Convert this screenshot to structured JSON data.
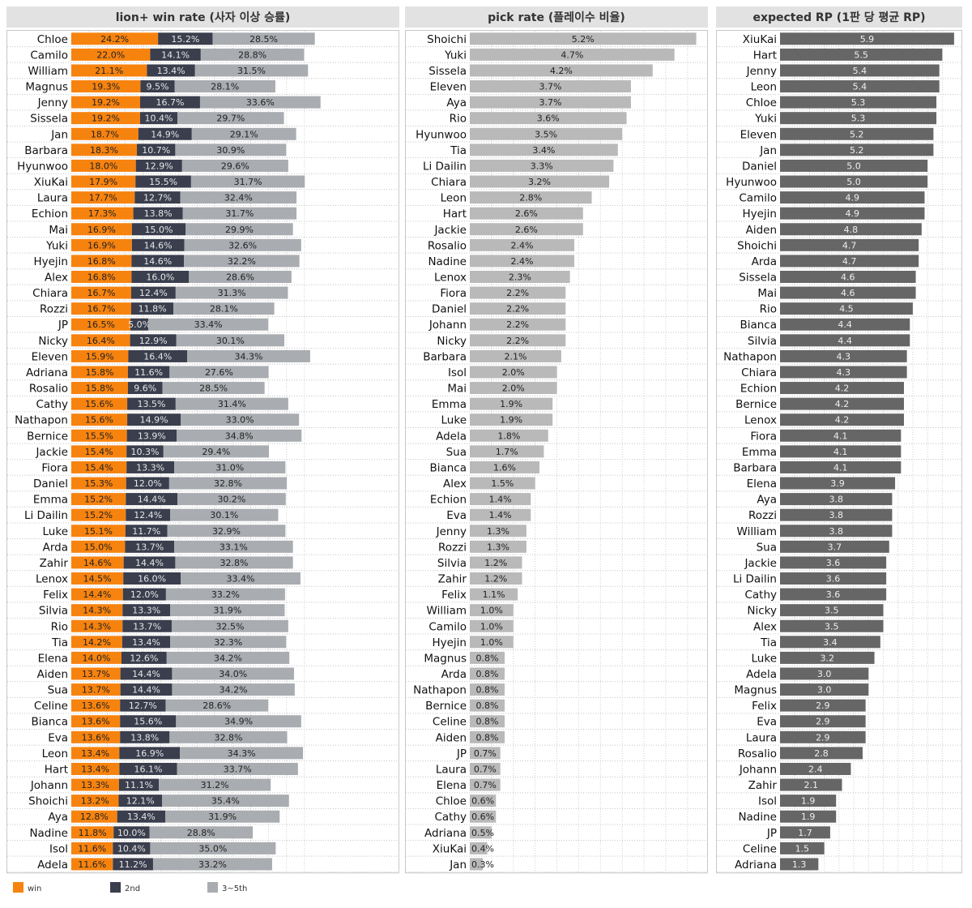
{
  "colors": {
    "win": "#f7830f",
    "second": "#3a3e4d",
    "third": "#a9acb0",
    "pick": "#b9b9b9",
    "rp": "#666666",
    "title_bg": "#e2e2e2"
  },
  "legend": [
    {
      "name": "win",
      "color": "#f7830f"
    },
    {
      "name": "2nd",
      "color": "#3a3e4d"
    },
    {
      "name": "3~5th",
      "color": "#a9acb0"
    }
  ],
  "chart_data": [
    {
      "type": "bar",
      "stacked": true,
      "orientation": "horizontal",
      "title": "lion+ win rate (사자 이상 승률)",
      "series_names": [
        "win",
        "2nd",
        "3~5th"
      ],
      "rows": [
        {
          "label": "Chloe",
          "values": [
            "24.2%",
            "15.2%",
            "28.5%"
          ]
        },
        {
          "label": "Camilo",
          "values": [
            "22.0%",
            "14.1%",
            "28.8%"
          ]
        },
        {
          "label": "William",
          "values": [
            "21.1%",
            "13.4%",
            "31.5%"
          ]
        },
        {
          "label": "Magnus",
          "values": [
            "19.3%",
            "9.5%",
            "28.1%"
          ]
        },
        {
          "label": "Jenny",
          "values": [
            "19.2%",
            "16.7%",
            "33.6%"
          ]
        },
        {
          "label": "Sissela",
          "values": [
            "19.2%",
            "10.4%",
            "29.7%"
          ]
        },
        {
          "label": "Jan",
          "values": [
            "18.7%",
            "14.9%",
            "29.1%"
          ]
        },
        {
          "label": "Barbara",
          "values": [
            "18.3%",
            "10.7%",
            "30.9%"
          ]
        },
        {
          "label": "Hyunwoo",
          "values": [
            "18.0%",
            "12.9%",
            "29.6%"
          ]
        },
        {
          "label": "XiuKai",
          "values": [
            "17.9%",
            "15.5%",
            "31.7%"
          ]
        },
        {
          "label": "Laura",
          "values": [
            "17.7%",
            "12.7%",
            "32.4%"
          ]
        },
        {
          "label": "Echion",
          "values": [
            "17.3%",
            "13.8%",
            "31.7%"
          ]
        },
        {
          "label": "Mai",
          "values": [
            "16.9%",
            "15.0%",
            "29.9%"
          ]
        },
        {
          "label": "Yuki",
          "values": [
            "16.9%",
            "14.6%",
            "32.6%"
          ]
        },
        {
          "label": "Hyejin",
          "values": [
            "16.8%",
            "14.6%",
            "32.2%"
          ]
        },
        {
          "label": "Alex",
          "values": [
            "16.8%",
            "16.0%",
            "28.6%"
          ]
        },
        {
          "label": "Chiara",
          "values": [
            "16.7%",
            "12.4%",
            "31.3%"
          ]
        },
        {
          "label": "Rozzi",
          "values": [
            "16.7%",
            "11.8%",
            "28.1%"
          ]
        },
        {
          "label": "JP",
          "values": [
            "16.5%",
            "5.0%",
            "33.4%"
          ]
        },
        {
          "label": "Nicky",
          "values": [
            "16.4%",
            "12.9%",
            "30.1%"
          ]
        },
        {
          "label": "Eleven",
          "values": [
            "15.9%",
            "16.4%",
            "34.3%"
          ]
        },
        {
          "label": "Adriana",
          "values": [
            "15.8%",
            "11.6%",
            "27.6%"
          ]
        },
        {
          "label": "Rosalio",
          "values": [
            "15.8%",
            "9.6%",
            "28.5%"
          ]
        },
        {
          "label": "Cathy",
          "values": [
            "15.6%",
            "13.5%",
            "31.4%"
          ]
        },
        {
          "label": "Nathapon",
          "values": [
            "15.6%",
            "14.9%",
            "33.0%"
          ]
        },
        {
          "label": "Bernice",
          "values": [
            "15.5%",
            "13.9%",
            "34.8%"
          ]
        },
        {
          "label": "Jackie",
          "values": [
            "15.4%",
            "10.3%",
            "29.4%"
          ]
        },
        {
          "label": "Fiora",
          "values": [
            "15.4%",
            "13.3%",
            "31.0%"
          ]
        },
        {
          "label": "Daniel",
          "values": [
            "15.3%",
            "12.0%",
            "32.8%"
          ]
        },
        {
          "label": "Emma",
          "values": [
            "15.2%",
            "14.4%",
            "30.2%"
          ]
        },
        {
          "label": "Li Dailin",
          "values": [
            "15.2%",
            "12.4%",
            "30.1%"
          ]
        },
        {
          "label": "Luke",
          "values": [
            "15.1%",
            "11.7%",
            "32.9%"
          ]
        },
        {
          "label": "Arda",
          "values": [
            "15.0%",
            "13.7%",
            "33.1%"
          ]
        },
        {
          "label": "Zahir",
          "values": [
            "14.6%",
            "14.4%",
            "32.8%"
          ]
        },
        {
          "label": "Lenox",
          "values": [
            "14.5%",
            "16.0%",
            "33.4%"
          ]
        },
        {
          "label": "Felix",
          "values": [
            "14.4%",
            "12.0%",
            "33.2%"
          ]
        },
        {
          "label": "Silvia",
          "values": [
            "14.3%",
            "13.3%",
            "31.9%"
          ]
        },
        {
          "label": "Rio",
          "values": [
            "14.3%",
            "13.7%",
            "32.5%"
          ]
        },
        {
          "label": "Tia",
          "values": [
            "14.2%",
            "13.4%",
            "32.3%"
          ]
        },
        {
          "label": "Elena",
          "values": [
            "14.0%",
            "12.6%",
            "34.2%"
          ]
        },
        {
          "label": "Aiden",
          "values": [
            "13.7%",
            "14.4%",
            "34.0%"
          ]
        },
        {
          "label": "Sua",
          "values": [
            "13.7%",
            "14.4%",
            "34.2%"
          ]
        },
        {
          "label": "Celine",
          "values": [
            "13.6%",
            "12.7%",
            "28.6%"
          ]
        },
        {
          "label": "Bianca",
          "values": [
            "13.6%",
            "15.6%",
            "34.9%"
          ]
        },
        {
          "label": "Eva",
          "values": [
            "13.6%",
            "13.8%",
            "32.8%"
          ]
        },
        {
          "label": "Leon",
          "values": [
            "13.4%",
            "16.9%",
            "34.3%"
          ]
        },
        {
          "label": "Hart",
          "values": [
            "13.4%",
            "16.1%",
            "33.7%"
          ]
        },
        {
          "label": "Johann",
          "values": [
            "13.3%",
            "11.1%",
            "31.2%"
          ]
        },
        {
          "label": "Shoichi",
          "values": [
            "13.2%",
            "12.1%",
            "35.4%"
          ]
        },
        {
          "label": "Aya",
          "values": [
            "12.8%",
            "13.4%",
            "31.9%"
          ]
        },
        {
          "label": "Nadine",
          "values": [
            "11.8%",
            "10.0%",
            "28.8%"
          ]
        },
        {
          "label": "Isol",
          "values": [
            "11.6%",
            "10.4%",
            "35.0%"
          ]
        },
        {
          "label": "Adela",
          "values": [
            "11.6%",
            "11.2%",
            "33.2%"
          ]
        }
      ]
    },
    {
      "type": "bar",
      "orientation": "horizontal",
      "title": "pick rate (플레이수 비율)",
      "rows": [
        {
          "label": "Shoichi",
          "value": "5.2%"
        },
        {
          "label": "Yuki",
          "value": "4.7%"
        },
        {
          "label": "Sissela",
          "value": "4.2%"
        },
        {
          "label": "Eleven",
          "value": "3.7%"
        },
        {
          "label": "Aya",
          "value": "3.7%"
        },
        {
          "label": "Rio",
          "value": "3.6%"
        },
        {
          "label": "Hyunwoo",
          "value": "3.5%"
        },
        {
          "label": "Tia",
          "value": "3.4%"
        },
        {
          "label": "Li Dailin",
          "value": "3.3%"
        },
        {
          "label": "Chiara",
          "value": "3.2%"
        },
        {
          "label": "Leon",
          "value": "2.8%"
        },
        {
          "label": "Hart",
          "value": "2.6%"
        },
        {
          "label": "Jackie",
          "value": "2.6%"
        },
        {
          "label": "Rosalio",
          "value": "2.4%"
        },
        {
          "label": "Nadine",
          "value": "2.4%"
        },
        {
          "label": "Lenox",
          "value": "2.3%"
        },
        {
          "label": "Fiora",
          "value": "2.2%"
        },
        {
          "label": "Daniel",
          "value": "2.2%"
        },
        {
          "label": "Johann",
          "value": "2.2%"
        },
        {
          "label": "Nicky",
          "value": "2.2%"
        },
        {
          "label": "Barbara",
          "value": "2.1%"
        },
        {
          "label": "Isol",
          "value": "2.0%"
        },
        {
          "label": "Mai",
          "value": "2.0%"
        },
        {
          "label": "Emma",
          "value": "1.9%"
        },
        {
          "label": "Luke",
          "value": "1.9%"
        },
        {
          "label": "Adela",
          "value": "1.8%"
        },
        {
          "label": "Sua",
          "value": "1.7%"
        },
        {
          "label": "Bianca",
          "value": "1.6%"
        },
        {
          "label": "Alex",
          "value": "1.5%"
        },
        {
          "label": "Echion",
          "value": "1.4%"
        },
        {
          "label": "Eva",
          "value": "1.4%"
        },
        {
          "label": "Jenny",
          "value": "1.3%"
        },
        {
          "label": "Rozzi",
          "value": "1.3%"
        },
        {
          "label": "Silvia",
          "value": "1.2%"
        },
        {
          "label": "Zahir",
          "value": "1.2%"
        },
        {
          "label": "Felix",
          "value": "1.1%"
        },
        {
          "label": "William",
          "value": "1.0%"
        },
        {
          "label": "Camilo",
          "value": "1.0%"
        },
        {
          "label": "Hyejin",
          "value": "1.0%"
        },
        {
          "label": "Magnus",
          "value": "0.8%"
        },
        {
          "label": "Arda",
          "value": "0.8%"
        },
        {
          "label": "Nathapon",
          "value": "0.8%"
        },
        {
          "label": "Bernice",
          "value": "0.8%"
        },
        {
          "label": "Celine",
          "value": "0.8%"
        },
        {
          "label": "Aiden",
          "value": "0.8%"
        },
        {
          "label": "JP",
          "value": "0.7%"
        },
        {
          "label": "Laura",
          "value": "0.7%"
        },
        {
          "label": "Elena",
          "value": "0.7%"
        },
        {
          "label": "Chloe",
          "value": "0.6%"
        },
        {
          "label": "Cathy",
          "value": "0.6%"
        },
        {
          "label": "Adriana",
          "value": "0.5%"
        },
        {
          "label": "XiuKai",
          "value": "0.4%"
        },
        {
          "label": "Jan",
          "value": "0.3%"
        }
      ]
    },
    {
      "type": "bar",
      "orientation": "horizontal",
      "title": "expected RP (1판 당 평균 RP)",
      "rows": [
        {
          "label": "XiuKai",
          "value": "5.9"
        },
        {
          "label": "Hart",
          "value": "5.5"
        },
        {
          "label": "Jenny",
          "value": "5.4"
        },
        {
          "label": "Leon",
          "value": "5.4"
        },
        {
          "label": "Chloe",
          "value": "5.3"
        },
        {
          "label": "Yuki",
          "value": "5.3"
        },
        {
          "label": "Eleven",
          "value": "5.2"
        },
        {
          "label": "Jan",
          "value": "5.2"
        },
        {
          "label": "Daniel",
          "value": "5.0"
        },
        {
          "label": "Hyunwoo",
          "value": "5.0"
        },
        {
          "label": "Camilo",
          "value": "4.9"
        },
        {
          "label": "Hyejin",
          "value": "4.9"
        },
        {
          "label": "Aiden",
          "value": "4.8"
        },
        {
          "label": "Shoichi",
          "value": "4.7"
        },
        {
          "label": "Arda",
          "value": "4.7"
        },
        {
          "label": "Sissela",
          "value": "4.6"
        },
        {
          "label": "Mai",
          "value": "4.6"
        },
        {
          "label": "Rio",
          "value": "4.5"
        },
        {
          "label": "Bianca",
          "value": "4.4"
        },
        {
          "label": "Silvia",
          "value": "4.4"
        },
        {
          "label": "Nathapon",
          "value": "4.3"
        },
        {
          "label": "Chiara",
          "value": "4.3"
        },
        {
          "label": "Echion",
          "value": "4.2"
        },
        {
          "label": "Bernice",
          "value": "4.2"
        },
        {
          "label": "Lenox",
          "value": "4.2"
        },
        {
          "label": "Fiora",
          "value": "4.1"
        },
        {
          "label": "Emma",
          "value": "4.1"
        },
        {
          "label": "Barbara",
          "value": "4.1"
        },
        {
          "label": "Elena",
          "value": "3.9"
        },
        {
          "label": "Aya",
          "value": "3.8"
        },
        {
          "label": "Rozzi",
          "value": "3.8"
        },
        {
          "label": "William",
          "value": "3.8"
        },
        {
          "label": "Sua",
          "value": "3.7"
        },
        {
          "label": "Jackie",
          "value": "3.6"
        },
        {
          "label": "Li Dailin",
          "value": "3.6"
        },
        {
          "label": "Cathy",
          "value": "3.6"
        },
        {
          "label": "Nicky",
          "value": "3.5"
        },
        {
          "label": "Alex",
          "value": "3.5"
        },
        {
          "label": "Tia",
          "value": "3.4"
        },
        {
          "label": "Luke",
          "value": "3.2"
        },
        {
          "label": "Adela",
          "value": "3.0"
        },
        {
          "label": "Magnus",
          "value": "3.0"
        },
        {
          "label": "Felix",
          "value": "2.9"
        },
        {
          "label": "Eva",
          "value": "2.9"
        },
        {
          "label": "Laura",
          "value": "2.9"
        },
        {
          "label": "Rosalio",
          "value": "2.8"
        },
        {
          "label": "Johann",
          "value": "2.4"
        },
        {
          "label": "Zahir",
          "value": "2.1"
        },
        {
          "label": "Isol",
          "value": "1.9"
        },
        {
          "label": "Nadine",
          "value": "1.9"
        },
        {
          "label": "JP",
          "value": "1.7"
        },
        {
          "label": "Celine",
          "value": "1.5"
        },
        {
          "label": "Adriana",
          "value": "1.3"
        }
      ]
    }
  ]
}
